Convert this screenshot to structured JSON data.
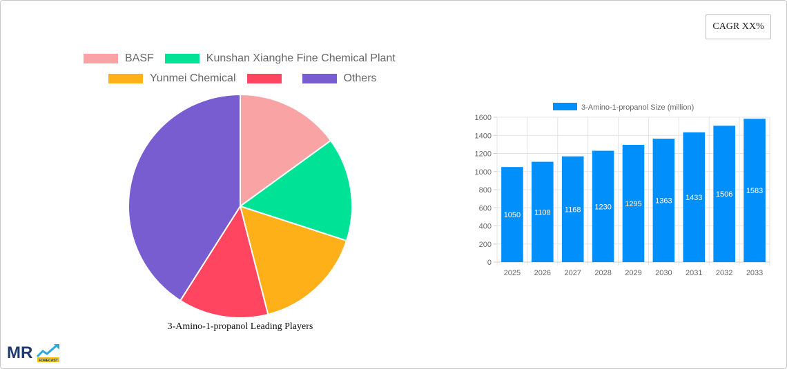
{
  "cagr_label": "CAGR XX%",
  "pie_chart": {
    "title": "3-Amino-1-propanol Leading Players"
  },
  "bar_chart": {
    "legend_label": "3-Amino-1-propanol Size (million)"
  },
  "logo": {
    "text": "MR",
    "subtext": "FORECAST"
  },
  "chart_data": [
    {
      "type": "pie",
      "title": "3-Amino-1-propanol Leading Players",
      "legend_position": "top",
      "slices": [
        {
          "label": "BASF",
          "value": 15,
          "color": "#f9a3a4"
        },
        {
          "label": "Kunshan Xianghe Fine Chemical Plant",
          "value": 15,
          "color": "#00e396"
        },
        {
          "label": "Yunmei Chemical",
          "value": 16,
          "color": "#feb019"
        },
        {
          "label": "",
          "value": 13,
          "color": "#ff4560"
        },
        {
          "label": "Others",
          "value": 41,
          "color": "#775dd0"
        }
      ]
    },
    {
      "type": "bar",
      "categories": [
        "2025",
        "2026",
        "2027",
        "2028",
        "2029",
        "2030",
        "2031",
        "2032",
        "2033"
      ],
      "series": [
        {
          "name": "3-Amino-1-propanol Size (million)",
          "values": [
            1050,
            1108,
            1168,
            1230,
            1295,
            1363,
            1433,
            1506,
            1583
          ],
          "color": "#008ffb"
        }
      ],
      "yticks": [
        0,
        200,
        400,
        600,
        800,
        1000,
        1200,
        1400,
        1600
      ],
      "ylim": [
        0,
        1600
      ],
      "grid": true,
      "legend_position": "top",
      "data_labels": true
    }
  ]
}
